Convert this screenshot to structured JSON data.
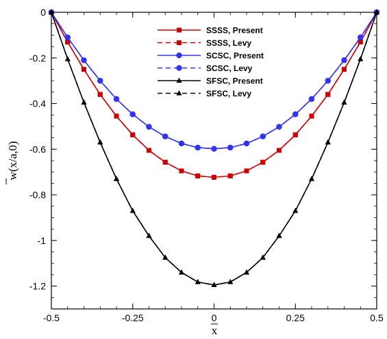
{
  "chart_data": {
    "type": "line",
    "title": "",
    "xlabel": "x",
    "ylabel": "w(x/a,0)",
    "xlim": [
      -0.5,
      0.5
    ],
    "ylim": [
      -1.3,
      0
    ],
    "xticks": [
      -0.5,
      -0.25,
      0,
      0.25,
      0.5
    ],
    "xtick_labels": [
      "-0.5",
      "-0.25",
      "0",
      "0.25",
      "0.5"
    ],
    "yticks": [
      0,
      -0.2,
      -0.4,
      -0.6,
      -0.8,
      -1,
      -1.2
    ],
    "ytick_labels": [
      "0",
      "-0.2",
      "-0.4",
      "-0.6",
      "-0.8",
      "-1",
      "-1.2"
    ],
    "grid": false,
    "legend_position": "top-center",
    "x": [
      -0.5,
      -0.45,
      -0.4,
      -0.35,
      -0.3,
      -0.25,
      -0.2,
      -0.15,
      -0.1,
      -0.05,
      0,
      0.05,
      0.1,
      0.15,
      0.2,
      0.25,
      0.3,
      0.35,
      0.4,
      0.45,
      0.5
    ],
    "series": [
      {
        "name": "SSSS, Present",
        "color": "#cc0000",
        "marker": "square",
        "dash": false,
        "values": [
          0,
          -0.13,
          -0.25,
          -0.36,
          -0.455,
          -0.537,
          -0.605,
          -0.657,
          -0.695,
          -0.717,
          -0.723,
          -0.717,
          -0.695,
          -0.657,
          -0.605,
          -0.537,
          -0.455,
          -0.36,
          -0.25,
          -0.13,
          0
        ]
      },
      {
        "name": "SSSS, Levy",
        "color": "#cc0000",
        "marker": "square",
        "dash": true,
        "values": [
          0,
          -0.13,
          -0.25,
          -0.36,
          -0.455,
          -0.537,
          -0.605,
          -0.657,
          -0.695,
          -0.717,
          -0.723,
          -0.717,
          -0.695,
          -0.657,
          -0.605,
          -0.537,
          -0.455,
          -0.36,
          -0.25,
          -0.13,
          0
        ]
      },
      {
        "name": "SCSC, Present",
        "color": "#3333ee",
        "marker": "circle",
        "dash": false,
        "values": [
          0,
          -0.11,
          -0.21,
          -0.3,
          -0.38,
          -0.447,
          -0.502,
          -0.544,
          -0.575,
          -0.593,
          -0.598,
          -0.593,
          -0.575,
          -0.544,
          -0.502,
          -0.447,
          -0.38,
          -0.3,
          -0.21,
          -0.11,
          0
        ]
      },
      {
        "name": "SCSC, Levy",
        "color": "#3333ee",
        "marker": "circle",
        "dash": true,
        "values": [
          0,
          -0.11,
          -0.21,
          -0.3,
          -0.38,
          -0.447,
          -0.502,
          -0.544,
          -0.575,
          -0.593,
          -0.598,
          -0.593,
          -0.575,
          -0.544,
          -0.502,
          -0.447,
          -0.38,
          -0.3,
          -0.21,
          -0.11,
          0
        ]
      },
      {
        "name": "SFSC, Present",
        "color": "#000000",
        "marker": "triangle",
        "dash": false,
        "values": [
          0,
          -0.205,
          -0.395,
          -0.57,
          -0.73,
          -0.87,
          -0.98,
          -1.075,
          -1.14,
          -1.182,
          -1.195,
          -1.182,
          -1.14,
          -1.075,
          -0.98,
          -0.87,
          -0.73,
          -0.57,
          -0.395,
          -0.205,
          0
        ]
      },
      {
        "name": "SFSC, Levy",
        "color": "#000000",
        "marker": "triangle",
        "dash": true,
        "values": [
          0,
          -0.205,
          -0.395,
          -0.57,
          -0.73,
          -0.87,
          -0.98,
          -1.075,
          -1.14,
          -1.182,
          -1.195,
          -1.182,
          -1.14,
          -1.075,
          -0.98,
          -0.87,
          -0.73,
          -0.57,
          -0.395,
          -0.205,
          0
        ]
      }
    ]
  }
}
